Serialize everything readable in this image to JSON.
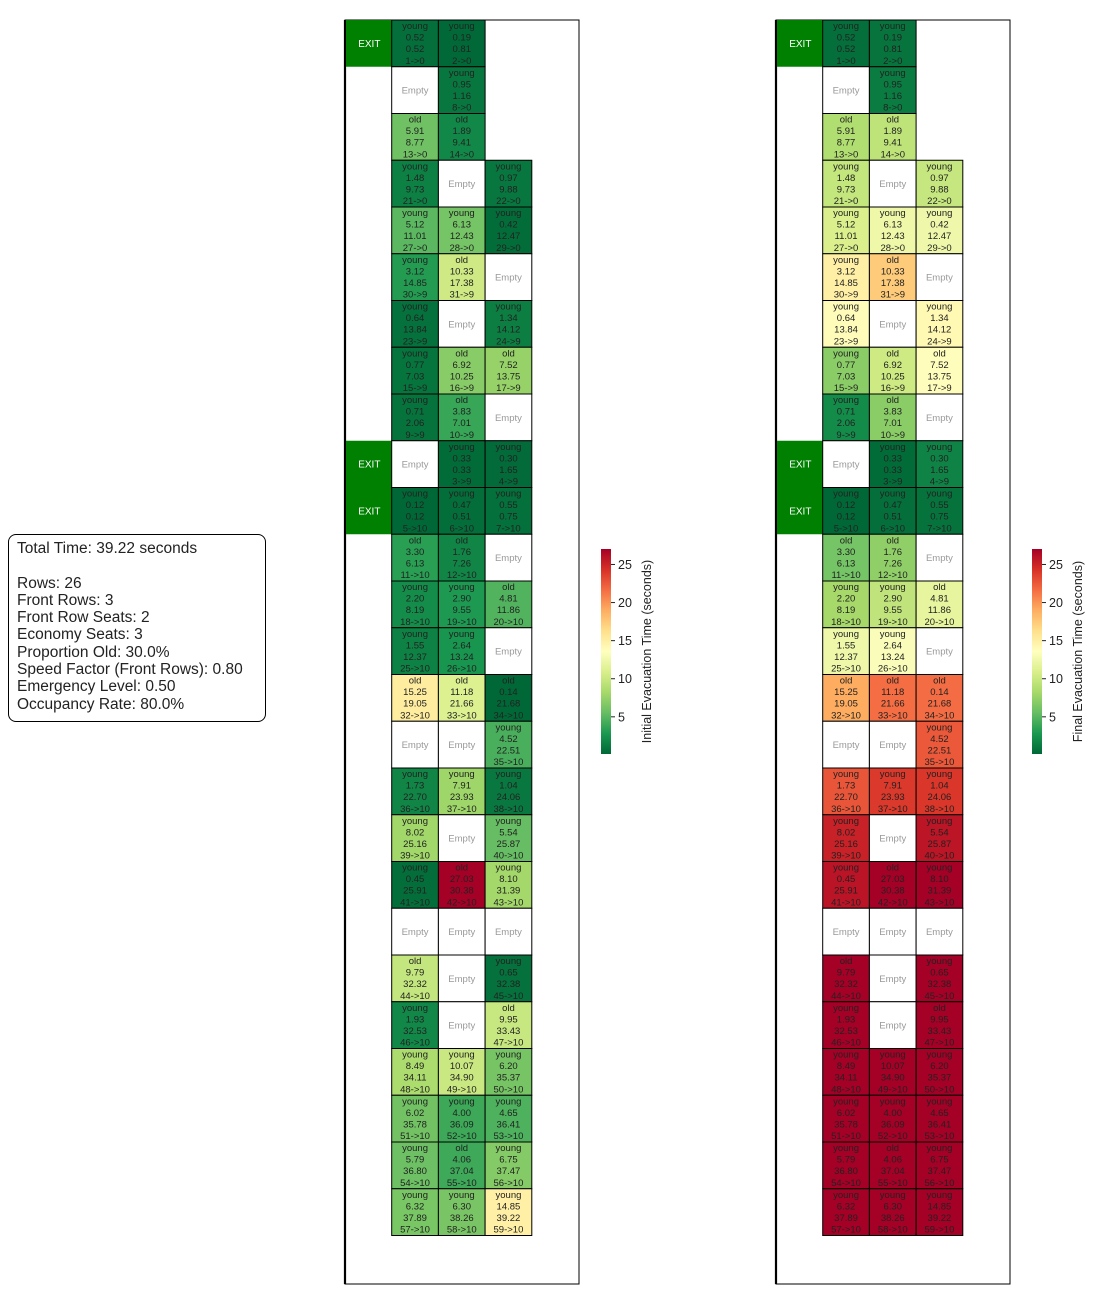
{
  "info": {
    "total_time": "Total Time: 39.22 seconds",
    "rows": "Rows: 26",
    "front_rows": "Front Rows: 3",
    "front_row_seats": "Front Row Seats: 2",
    "economy_seats": "Economy Seats: 3",
    "proportion_old": "Proportion Old: 30.0%",
    "speed_factor": "Speed Factor (Front Rows): 0.80",
    "emergency_level": "Emergency Level: 0.50",
    "occupancy_rate": "Occupancy Rate: 80.0%"
  },
  "chart_data": [
    {
      "type": "heatmap",
      "colormap": "RdYlGn_r",
      "value_field": "initial",
      "colorbar": {
        "label": "Initial Evacuation Time (seconds)",
        "ticks": [
          5,
          10,
          15,
          20,
          25
        ],
        "range": [
          0.12,
          27.03
        ]
      }
    },
    {
      "type": "heatmap",
      "colormap": "RdYlGn_r",
      "value_field": "final",
      "colorbar": {
        "label": "Final Evacuation Time (seconds)",
        "ticks": [
          5,
          10,
          15,
          20,
          25
        ],
        "range": [
          0.12,
          27.03
        ]
      }
    }
  ],
  "seat_map": {
    "exit_label": "EXIT",
    "empty_label": "Empty",
    "exit_rows": [
      0,
      9,
      10
    ],
    "seats": [
      {
        "row": 0,
        "col": 0,
        "type": "young",
        "initial": "0.52",
        "final": "0.52",
        "route": "1->0"
      },
      {
        "row": 0,
        "col": 1,
        "type": "young",
        "initial": "0.19",
        "final": "0.81",
        "route": "2->0"
      },
      {
        "row": 1,
        "col": 0,
        "type": "empty"
      },
      {
        "row": 1,
        "col": 1,
        "type": "young",
        "initial": "0.95",
        "final": "1.16",
        "route": "8->0"
      },
      {
        "row": 2,
        "col": 0,
        "type": "old",
        "initial": "5.91",
        "final": "8.77",
        "route": "13->0"
      },
      {
        "row": 2,
        "col": 1,
        "type": "old",
        "initial": "1.89",
        "final": "9.41",
        "route": "14->0"
      },
      {
        "row": 3,
        "col": 0,
        "type": "young",
        "initial": "1.48",
        "final": "9.73",
        "route": "21->0"
      },
      {
        "row": 3,
        "col": 1,
        "type": "empty"
      },
      {
        "row": 3,
        "col": 2,
        "type": "young",
        "initial": "0.97",
        "final": "9.88",
        "route": "22->0"
      },
      {
        "row": 4,
        "col": 0,
        "type": "young",
        "initial": "5.12",
        "final": "11.01",
        "route": "27->0"
      },
      {
        "row": 4,
        "col": 1,
        "type": "young",
        "initial": "6.13",
        "final": "12.43",
        "route": "28->0"
      },
      {
        "row": 4,
        "col": 2,
        "type": "young",
        "initial": "0.42",
        "final": "12.47",
        "route": "29->0"
      },
      {
        "row": 5,
        "col": 0,
        "type": "young",
        "initial": "3.12",
        "final": "14.85",
        "route": "30->9"
      },
      {
        "row": 5,
        "col": 1,
        "type": "old",
        "initial": "10.33",
        "final": "17.38",
        "route": "31->9"
      },
      {
        "row": 5,
        "col": 2,
        "type": "empty"
      },
      {
        "row": 6,
        "col": 0,
        "type": "young",
        "initial": "0.64",
        "final": "13.84",
        "route": "23->9"
      },
      {
        "row": 6,
        "col": 1,
        "type": "empty"
      },
      {
        "row": 6,
        "col": 2,
        "type": "young",
        "initial": "1.34",
        "final": "14.12",
        "route": "24->9"
      },
      {
        "row": 7,
        "col": 0,
        "type": "young",
        "initial": "0.77",
        "final": "7.03",
        "route": "15->9"
      },
      {
        "row": 7,
        "col": 1,
        "type": "old",
        "initial": "6.92",
        "final": "10.25",
        "route": "16->9"
      },
      {
        "row": 7,
        "col": 2,
        "type": "old",
        "initial": "7.52",
        "final": "13.75",
        "route": "17->9"
      },
      {
        "row": 8,
        "col": 0,
        "type": "young",
        "initial": "0.71",
        "final": "2.06",
        "route": "9->9"
      },
      {
        "row": 8,
        "col": 1,
        "type": "old",
        "initial": "3.83",
        "final": "7.01",
        "route": "10->9"
      },
      {
        "row": 8,
        "col": 2,
        "type": "empty"
      },
      {
        "row": 9,
        "col": 0,
        "type": "empty"
      },
      {
        "row": 9,
        "col": 1,
        "type": "young",
        "initial": "0.33",
        "final": "0.33",
        "route": "3->9"
      },
      {
        "row": 9,
        "col": 2,
        "type": "young",
        "initial": "0.30",
        "final": "1.65",
        "route": "4->9"
      },
      {
        "row": 10,
        "col": 0,
        "type": "young",
        "initial": "0.12",
        "final": "0.12",
        "route": "5->10"
      },
      {
        "row": 10,
        "col": 1,
        "type": "young",
        "initial": "0.47",
        "final": "0.51",
        "route": "6->10"
      },
      {
        "row": 10,
        "col": 2,
        "type": "young",
        "initial": "0.55",
        "final": "0.75",
        "route": "7->10"
      },
      {
        "row": 11,
        "col": 0,
        "type": "old",
        "initial": "3.30",
        "final": "6.13",
        "route": "11->10"
      },
      {
        "row": 11,
        "col": 1,
        "type": "old",
        "initial": "1.76",
        "final": "7.26",
        "route": "12->10"
      },
      {
        "row": 11,
        "col": 2,
        "type": "empty"
      },
      {
        "row": 12,
        "col": 0,
        "type": "young",
        "initial": "2.20",
        "final": "8.19",
        "route": "18->10"
      },
      {
        "row": 12,
        "col": 1,
        "type": "young",
        "initial": "2.90",
        "final": "9.55",
        "route": "19->10"
      },
      {
        "row": 12,
        "col": 2,
        "type": "old",
        "initial": "4.81",
        "final": "11.86",
        "route": "20->10"
      },
      {
        "row": 13,
        "col": 0,
        "type": "young",
        "initial": "1.55",
        "final": "12.37",
        "route": "25->10"
      },
      {
        "row": 13,
        "col": 1,
        "type": "young",
        "initial": "2.64",
        "final": "13.24",
        "route": "26->10"
      },
      {
        "row": 13,
        "col": 2,
        "type": "empty"
      },
      {
        "row": 14,
        "col": 0,
        "type": "old",
        "initial": "15.25",
        "final": "19.05",
        "route": "32->10"
      },
      {
        "row": 14,
        "col": 1,
        "type": "old",
        "initial": "11.18",
        "final": "21.66",
        "route": "33->10"
      },
      {
        "row": 14,
        "col": 2,
        "type": "old",
        "initial": "0.14",
        "final": "21.68",
        "route": "34->10"
      },
      {
        "row": 15,
        "col": 0,
        "type": "empty"
      },
      {
        "row": 15,
        "col": 1,
        "type": "empty"
      },
      {
        "row": 15,
        "col": 2,
        "type": "young",
        "initial": "4.52",
        "final": "22.51",
        "route": "35->10"
      },
      {
        "row": 16,
        "col": 0,
        "type": "young",
        "initial": "1.73",
        "final": "22.70",
        "route": "36->10"
      },
      {
        "row": 16,
        "col": 1,
        "type": "young",
        "initial": "7.91",
        "final": "23.93",
        "route": "37->10"
      },
      {
        "row": 16,
        "col": 2,
        "type": "young",
        "initial": "1.04",
        "final": "24.06",
        "route": "38->10"
      },
      {
        "row": 17,
        "col": 0,
        "type": "young",
        "initial": "8.02",
        "final": "25.16",
        "route": "39->10"
      },
      {
        "row": 17,
        "col": 1,
        "type": "empty"
      },
      {
        "row": 17,
        "col": 2,
        "type": "young",
        "initial": "5.54",
        "final": "25.87",
        "route": "40->10"
      },
      {
        "row": 18,
        "col": 0,
        "type": "young",
        "initial": "0.45",
        "final": "25.91",
        "route": "41->10"
      },
      {
        "row": 18,
        "col": 1,
        "type": "old",
        "initial": "27.03",
        "final": "30.38",
        "route": "42->10"
      },
      {
        "row": 18,
        "col": 2,
        "type": "young",
        "initial": "8.10",
        "final": "31.39",
        "route": "43->10"
      },
      {
        "row": 19,
        "col": 0,
        "type": "empty"
      },
      {
        "row": 19,
        "col": 1,
        "type": "empty"
      },
      {
        "row": 19,
        "col": 2,
        "type": "empty"
      },
      {
        "row": 20,
        "col": 0,
        "type": "old",
        "initial": "9.79",
        "final": "32.32",
        "route": "44->10"
      },
      {
        "row": 20,
        "col": 1,
        "type": "empty"
      },
      {
        "row": 20,
        "col": 2,
        "type": "young",
        "initial": "0.65",
        "final": "32.38",
        "route": "45->10"
      },
      {
        "row": 21,
        "col": 0,
        "type": "young",
        "initial": "1.93",
        "final": "32.53",
        "route": "46->10"
      },
      {
        "row": 21,
        "col": 1,
        "type": "empty"
      },
      {
        "row": 21,
        "col": 2,
        "type": "old",
        "initial": "9.95",
        "final": "33.43",
        "route": "47->10"
      },
      {
        "row": 22,
        "col": 0,
        "type": "young",
        "initial": "8.49",
        "final": "34.11",
        "route": "48->10"
      },
      {
        "row": 22,
        "col": 1,
        "type": "young",
        "initial": "10.07",
        "final": "34.90",
        "route": "49->10"
      },
      {
        "row": 22,
        "col": 2,
        "type": "young",
        "initial": "6.20",
        "final": "35.37",
        "route": "50->10"
      },
      {
        "row": 23,
        "col": 0,
        "type": "young",
        "initial": "6.02",
        "final": "35.78",
        "route": "51->10"
      },
      {
        "row": 23,
        "col": 1,
        "type": "young",
        "initial": "4.00",
        "final": "36.09",
        "route": "52->10"
      },
      {
        "row": 23,
        "col": 2,
        "type": "young",
        "initial": "4.65",
        "final": "36.41",
        "route": "53->10"
      },
      {
        "row": 24,
        "col": 0,
        "type": "young",
        "initial": "5.79",
        "final": "36.80",
        "route": "54->10"
      },
      {
        "row": 24,
        "col": 1,
        "type": "old",
        "initial": "4.06",
        "final": "37.04",
        "route": "55->10"
      },
      {
        "row": 24,
        "col": 2,
        "type": "young",
        "initial": "6.75",
        "final": "37.47",
        "route": "56->10"
      },
      {
        "row": 25,
        "col": 0,
        "type": "young",
        "initial": "6.32",
        "final": "37.89",
        "route": "57->10"
      },
      {
        "row": 25,
        "col": 1,
        "type": "young",
        "initial": "6.30",
        "final": "38.26",
        "route": "58->10"
      },
      {
        "row": 25,
        "col": 2,
        "type": "young",
        "initial": "14.85",
        "final": "39.22",
        "route": "59->10"
      }
    ]
  }
}
